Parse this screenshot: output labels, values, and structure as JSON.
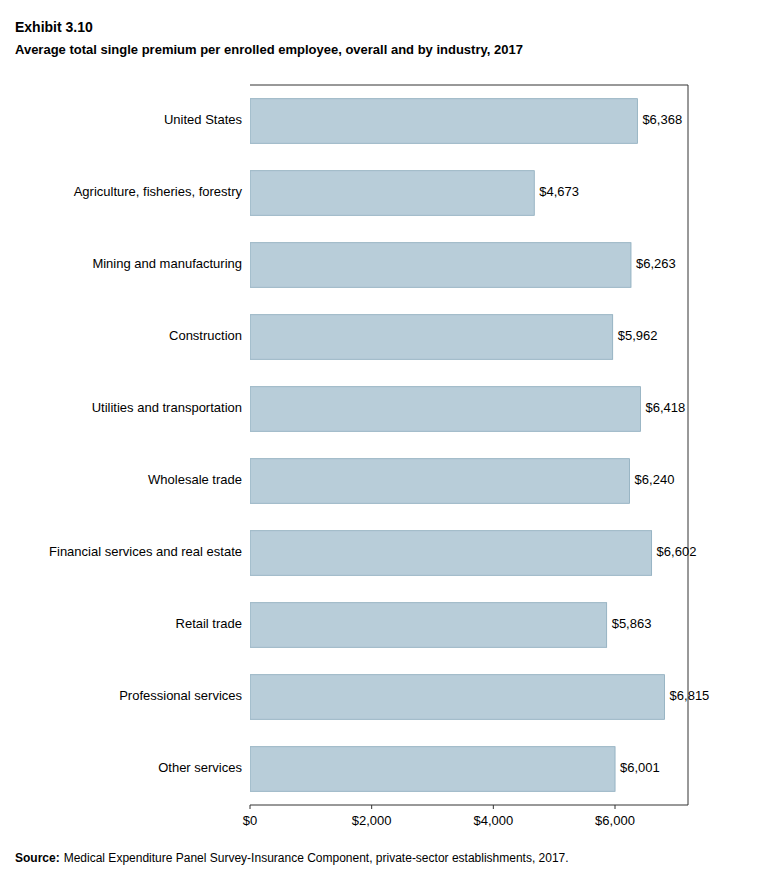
{
  "chart_data": {
    "type": "bar",
    "orientation": "horizontal",
    "title": "Exhibit 3.10",
    "subtitle": "Average total single premium per enrolled employee, overall and by industry, 2017",
    "categories": [
      "United States",
      "Agriculture, fisheries, forestry",
      "Mining and manufacturing",
      "Construction",
      "Utilities and transportation",
      "Wholesale trade",
      "Financial services and real estate",
      "Retail trade",
      "Professional services",
      "Other services"
    ],
    "values": [
      6368,
      4673,
      6263,
      5962,
      6418,
      6240,
      6602,
      5863,
      6815,
      6001
    ],
    "value_labels": [
      "$6,368",
      "$4,673",
      "$6,263",
      "$5,962",
      "$6,418",
      "$6,240",
      "$6,602",
      "$5,863",
      "$6,815",
      "$6,001"
    ],
    "data_labels": true,
    "color": "#b8cdd9",
    "xlim": [
      0,
      7200
    ],
    "xticks": [
      {
        "value": 0,
        "label": "$0"
      },
      {
        "value": 2000,
        "label": "$2,000"
      },
      {
        "value": 4000,
        "label": "$4,000"
      },
      {
        "value": 6000,
        "label": "$6,000"
      }
    ],
    "grid": false,
    "annotations": [
      "Source:",
      "Medical Expenditure Panel Survey-Insurance Component, private-sector establishments, 2017."
    ]
  }
}
